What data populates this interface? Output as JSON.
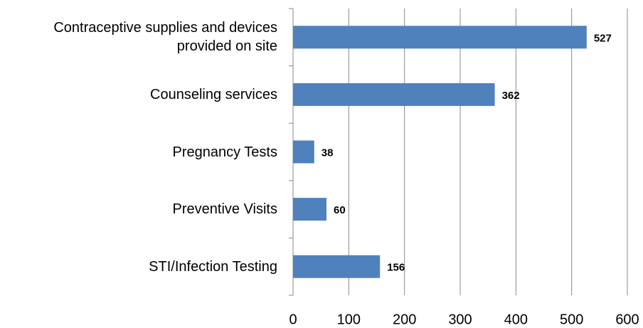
{
  "chart_data": {
    "type": "barh",
    "categories": [
      "Contraceptive supplies and devices provided on site",
      "Counseling services",
      "Pregnancy Tests",
      "Preventive Visits",
      "STI/Infection Testing"
    ],
    "values": [
      527,
      362,
      38,
      60,
      156
    ],
    "color": "#4f81bd",
    "xlim": [
      0,
      600
    ],
    "xticks": [
      0,
      100,
      200,
      300,
      400,
      500,
      600
    ],
    "grid": true
  }
}
